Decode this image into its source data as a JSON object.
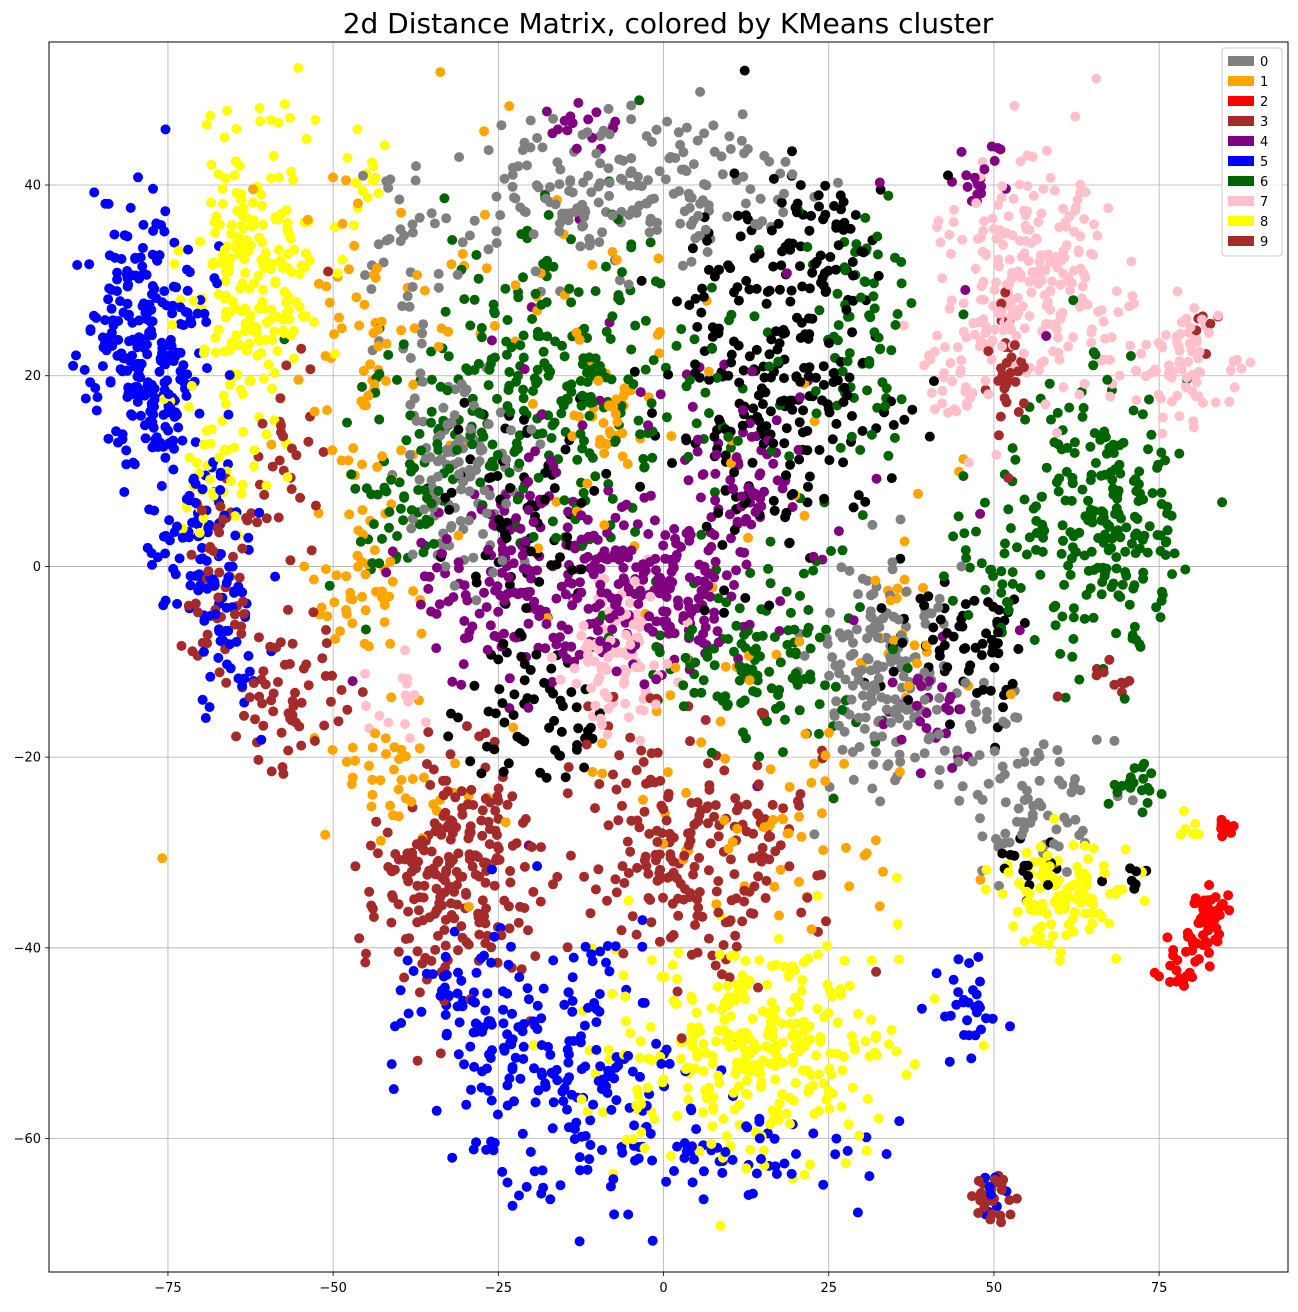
{
  "chart_data": {
    "type": "scatter",
    "title": "2d Distance Matrix, colored by KMeans cluster",
    "xlabel": "",
    "ylabel": "",
    "xlim": [
      -93,
      94.5
    ],
    "ylim": [
      -74,
      55
    ],
    "xticks": [
      -75,
      -50,
      -25,
      0,
      25,
      50,
      75
    ],
    "yticks": [
      -60,
      -40,
      -20,
      0,
      20,
      40
    ],
    "grid": true,
    "legend_position": "top-right",
    "legend": [
      {
        "label": "0",
        "color": "#808080"
      },
      {
        "label": "1",
        "color": "#ffa500"
      },
      {
        "label": "2",
        "color": "#ff0000"
      },
      {
        "label": "3",
        "color": "#a52a2a"
      },
      {
        "label": "4",
        "color": "#800080"
      },
      {
        "label": "5",
        "color": "#0000ff"
      },
      {
        "label": "6",
        "color": "#006400"
      },
      {
        "label": "7",
        "color": "#ffc0cb"
      },
      {
        "label": "8",
        "color": "#ffff00"
      },
      {
        "label": "9",
        "color": "#a52a2a"
      }
    ],
    "unlabeled_series_color": "#000000",
    "series": [
      {
        "name": "5",
        "color": "#0000ff",
        "clusters": [
          {
            "cx": -78,
            "cy": 23,
            "sx": 4.5,
            "sy": 7,
            "n": 260
          },
          {
            "cx": -70,
            "cy": 3,
            "sx": 4,
            "sy": 5,
            "n": 90
          },
          {
            "cx": -66,
            "cy": -9,
            "sx": 3,
            "sy": 4,
            "n": 40
          },
          {
            "cx": -15,
            "cy": -52,
            "sx": 9,
            "sy": 7,
            "n": 200
          },
          {
            "cx": -30,
            "cy": -45,
            "sx": 5,
            "sy": 3,
            "n": 50
          },
          {
            "cx": 12,
            "cy": -62,
            "sx": 10,
            "sy": 2.5,
            "n": 60
          },
          {
            "cx": 46,
            "cy": -46,
            "sx": 2.5,
            "sy": 3,
            "n": 30
          },
          {
            "cx": 50,
            "cy": -66,
            "sx": 0.8,
            "sy": 1.5,
            "n": 8
          }
        ]
      },
      {
        "name": "8",
        "color": "#ffff00",
        "clusters": [
          {
            "cx": -62,
            "cy": 30,
            "sx": 5,
            "sy": 8,
            "n": 220
          },
          {
            "cx": -68,
            "cy": 10,
            "sx": 3,
            "sy": 4,
            "n": 40
          },
          {
            "cx": -46,
            "cy": 40,
            "sx": 2.5,
            "sy": 2.5,
            "n": 15
          },
          {
            "cx": 14,
            "cy": -51,
            "sx": 11,
            "sy": 6,
            "n": 320
          },
          {
            "cx": 60,
            "cy": -35,
            "sx": 5,
            "sy": 3,
            "n": 110
          },
          {
            "cx": 79,
            "cy": -28,
            "sx": 1.5,
            "sy": 1,
            "n": 6
          }
        ]
      },
      {
        "name": "1",
        "color": "#ffa500",
        "clusters": [
          {
            "cx": -46,
            "cy": 20,
            "sx": 4,
            "sy": 10,
            "n": 60
          },
          {
            "cx": -45,
            "cy": -3,
            "sx": 4,
            "sy": 3,
            "n": 40
          },
          {
            "cx": -42,
            "cy": -22,
            "sx": 4,
            "sy": 3,
            "n": 40
          },
          {
            "cx": -8,
            "cy": 15,
            "sx": 2.5,
            "sy": 3,
            "n": 30
          },
          {
            "cx": -20,
            "cy": 30,
            "sx": 15,
            "sy": 8,
            "n": 40
          },
          {
            "cx": 20,
            "cy": -28,
            "sx": 10,
            "sy": 5,
            "n": 50
          },
          {
            "cx": 37,
            "cy": -5,
            "sx": 3,
            "sy": 4,
            "n": 20
          },
          {
            "cx": 0,
            "cy": -5,
            "sx": 30,
            "sy": 20,
            "n": 60
          }
        ]
      },
      {
        "name": "9",
        "color": "#a52a2a",
        "clusters": [
          {
            "cx": -67,
            "cy": -2,
            "sx": 3,
            "sy": 6,
            "n": 50
          },
          {
            "cx": -57,
            "cy": -13,
            "sx": 4,
            "sy": 4,
            "n": 60
          },
          {
            "cx": -58,
            "cy": 12,
            "sx": 3,
            "sy": 6,
            "n": 30
          },
          {
            "cx": -32,
            "cy": -32,
            "sx": 6,
            "sy": 6,
            "n": 230
          },
          {
            "cx": 5,
            "cy": -30,
            "sx": 9,
            "sy": 7,
            "n": 220
          },
          {
            "cx": 52,
            "cy": 20,
            "sx": 1.5,
            "sy": 3,
            "n": 30
          },
          {
            "cx": 50,
            "cy": -66.5,
            "sx": 1.2,
            "sy": 1.3,
            "n": 30
          },
          {
            "cx": 82,
            "cy": 24,
            "sx": 1.5,
            "sy": 2,
            "n": 6
          },
          {
            "cx": 66,
            "cy": -12,
            "sx": 3,
            "sy": 1,
            "n": 10
          }
        ]
      },
      {
        "name": "0",
        "color": "#808080",
        "clusters": [
          {
            "cx": -5,
            "cy": 40,
            "sx": 13,
            "sy": 4,
            "n": 200
          },
          {
            "cx": -30,
            "cy": 10,
            "sx": 5,
            "sy": 5,
            "n": 110
          },
          {
            "cx": -38,
            "cy": 30,
            "sx": 3,
            "sy": 8,
            "n": 40
          },
          {
            "cx": 33,
            "cy": -11,
            "sx": 5,
            "sy": 6,
            "n": 160
          },
          {
            "cx": 57,
            "cy": -25,
            "sx": 5,
            "sy": 4,
            "n": 70
          },
          {
            "cx": 45,
            "cy": -18,
            "sx": 5,
            "sy": 3,
            "n": 30
          }
        ]
      },
      {
        "name": "6",
        "color": "#006400",
        "clusters": [
          {
            "cx": -20,
            "cy": 20,
            "sx": 11,
            "sy": 8,
            "n": 260
          },
          {
            "cx": 66,
            "cy": 6,
            "sx": 6,
            "sy": 7,
            "n": 230
          },
          {
            "cx": 15,
            "cy": -10,
            "sx": 9,
            "sy": 5,
            "n": 130
          },
          {
            "cx": 30,
            "cy": 25,
            "sx": 4,
            "sy": 6,
            "n": 60
          },
          {
            "cx": -40,
            "cy": 5,
            "sx": 4,
            "sy": 5,
            "n": 50
          },
          {
            "cx": 10,
            "cy": 15,
            "sx": 15,
            "sy": 10,
            "n": 60
          },
          {
            "cx": 48,
            "cy": 0,
            "sx": 4,
            "sy": 3,
            "n": 30
          },
          {
            "cx": 72,
            "cy": -23,
            "sx": 2,
            "sy": 2,
            "n": 20
          }
        ]
      },
      {
        "name": "4",
        "color": "#800080",
        "clusters": [
          {
            "cx": -20,
            "cy": -2,
            "sx": 9,
            "sy": 6,
            "n": 200
          },
          {
            "cx": 0,
            "cy": -2,
            "sx": 6,
            "sy": 4,
            "n": 150
          },
          {
            "cx": 12,
            "cy": 8,
            "sx": 4,
            "sy": 5,
            "n": 60
          },
          {
            "cx": 48,
            "cy": 40,
            "sx": 2,
            "sy": 2,
            "n": 20
          },
          {
            "cx": -12,
            "cy": 46,
            "sx": 3,
            "sy": 1.5,
            "n": 15
          },
          {
            "cx": 40,
            "cy": -15,
            "sx": 4,
            "sy": 3,
            "n": 30
          },
          {
            "cx": 0,
            "cy": 10,
            "sx": 25,
            "sy": 15,
            "n": 50
          }
        ]
      },
      {
        "name": "7",
        "color": "#ffc0cb",
        "clusters": [
          {
            "cx": 55,
            "cy": 30,
            "sx": 7,
            "sy": 6,
            "n": 240
          },
          {
            "cx": 78,
            "cy": 21,
            "sx": 4,
            "sy": 3,
            "n": 80
          },
          {
            "cx": -7,
            "cy": -10,
            "sx": 4,
            "sy": 5,
            "n": 90
          },
          {
            "cx": 45,
            "cy": 20,
            "sx": 3,
            "sy": 3,
            "n": 30
          },
          {
            "cx": -40,
            "cy": -14,
            "sx": 3,
            "sy": 3,
            "n": 15
          }
        ]
      },
      {
        "name": "2",
        "color": "#ff0000",
        "clusters": [
          {
            "cx": 78,
            "cy": -41,
            "sx": 2,
            "sy": 1.5,
            "n": 25
          },
          {
            "cx": 83,
            "cy": -36,
            "sx": 1.2,
            "sy": 1.5,
            "n": 35
          },
          {
            "cx": 85,
            "cy": -27.5,
            "sx": 0.6,
            "sy": 0.4,
            "n": 10
          },
          {
            "cx": 81,
            "cy": -39,
            "sx": 1,
            "sy": 1,
            "n": 10
          }
        ]
      },
      {
        "name": "",
        "color": "#000000",
        "clusters": [
          {
            "cx": 17,
            "cy": 20,
            "sx": 8,
            "sy": 10,
            "n": 260
          },
          {
            "cx": -22,
            "cy": 5,
            "sx": 6,
            "sy": 6,
            "n": 80
          },
          {
            "cx": -20,
            "cy": -15,
            "sx": 7,
            "sy": 4,
            "n": 60
          },
          {
            "cx": 47,
            "cy": -8,
            "sx": 6,
            "sy": 4,
            "n": 70
          },
          {
            "cx": 25,
            "cy": 35,
            "sx": 3,
            "sy": 3,
            "n": 30
          },
          {
            "cx": 55,
            "cy": -30,
            "sx": 3,
            "sy": 2,
            "n": 15
          },
          {
            "cx": 70,
            "cy": -33,
            "sx": 2,
            "sy": 1,
            "n": 8
          }
        ]
      }
    ]
  }
}
